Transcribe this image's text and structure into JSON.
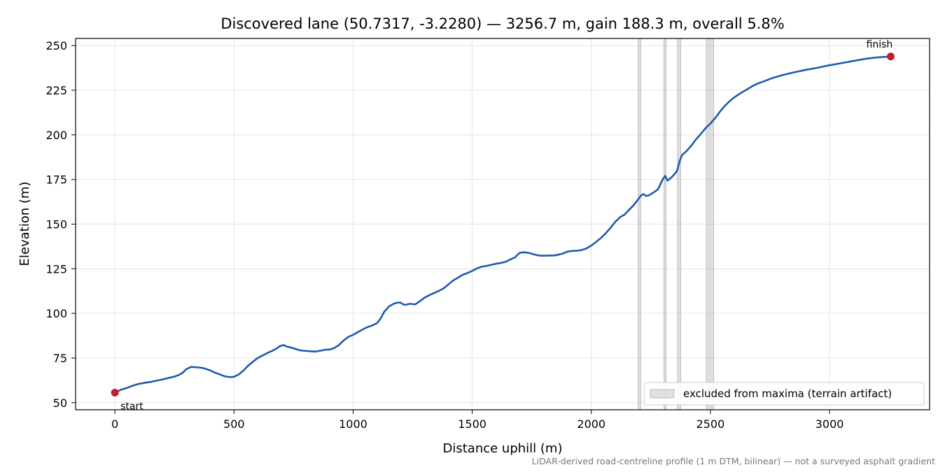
{
  "chart_data": {
    "type": "line",
    "title": "Discovered lane (50.7317, -3.2280) — 3256.7 m, gain 188.3 m, overall 5.8%",
    "xlabel": "Distance uphill (m)",
    "ylabel": "Elevation (m)",
    "xlim": [
      -165,
      3420
    ],
    "ylim": [
      46,
      254
    ],
    "x_ticks": [
      0,
      500,
      1000,
      1500,
      2000,
      2500,
      3000
    ],
    "y_ticks": [
      50,
      75,
      100,
      125,
      150,
      175,
      200,
      225,
      250
    ],
    "grid": true,
    "legend_position": "lower-right",
    "line_color": "#1f5aad",
    "marker_color": "#c41e2a",
    "excluded_color": "#bbbbbb",
    "legend": {
      "excluded_label": "excluded from maxima (terrain artifact)"
    },
    "excluded_ranges": [
      [
        2197,
        2207
      ],
      [
        2305,
        2313
      ],
      [
        2362,
        2375
      ],
      [
        2483,
        2513
      ]
    ],
    "markers": [
      {
        "label": "start",
        "x": 0,
        "y": 55.6
      },
      {
        "label": "finish",
        "x": 3256.7,
        "y": 243.9
      }
    ],
    "series": [
      {
        "x": [
          0,
          25,
          50,
          75,
          100,
          125,
          150,
          175,
          200,
          225,
          250,
          270,
          285,
          300,
          320,
          340,
          360,
          380,
          400,
          420,
          440,
          460,
          480,
          500,
          520,
          540,
          560,
          580,
          600,
          620,
          640,
          660,
          680,
          690,
          700,
          710,
          720,
          740,
          760,
          780,
          800,
          820,
          840,
          860,
          880,
          900,
          920,
          940,
          960,
          980,
          1000,
          1020,
          1040,
          1060,
          1080,
          1100,
          1115,
          1130,
          1150,
          1170,
          1185,
          1200,
          1210,
          1220,
          1240,
          1260,
          1280,
          1300,
          1320,
          1340,
          1360,
          1380,
          1400,
          1420,
          1440,
          1460,
          1480,
          1500,
          1520,
          1540,
          1560,
          1580,
          1600,
          1620,
          1640,
          1660,
          1680,
          1690,
          1700,
          1720,
          1740,
          1760,
          1780,
          1800,
          1820,
          1840,
          1860,
          1880,
          1900,
          1920,
          1940,
          1960,
          1980,
          2000,
          2020,
          2040,
          2060,
          2080,
          2100,
          2120,
          2140,
          2160,
          2180,
          2200,
          2210,
          2220,
          2230,
          2240,
          2260,
          2280,
          2300,
          2310,
          2320,
          2340,
          2360,
          2370,
          2380,
          2400,
          2420,
          2440,
          2460,
          2480,
          2500,
          2520,
          2540,
          2560,
          2580,
          2600,
          2620,
          2640,
          2660,
          2680,
          2700,
          2720,
          2740,
          2760,
          2780,
          2800,
          2850,
          2900,
          2950,
          3000,
          3050,
          3100,
          3150,
          3200,
          3256.7
        ],
        "y": [
          55.6,
          57.2,
          58.2,
          59.5,
          60.5,
          61.1,
          61.6,
          62.3,
          63.0,
          63.8,
          64.6,
          65.6,
          66.8,
          68.8,
          70.0,
          69.8,
          69.6,
          69.0,
          68.0,
          66.8,
          65.8,
          64.8,
          64.3,
          64.5,
          65.8,
          68.0,
          70.8,
          73.0,
          75.0,
          76.4,
          77.8,
          79.0,
          80.4,
          81.5,
          82.0,
          82.2,
          81.5,
          80.8,
          80.0,
          79.2,
          79.0,
          78.8,
          78.6,
          79.0,
          79.6,
          79.7,
          80.5,
          82.2,
          84.8,
          86.8,
          88.0,
          89.5,
          91.0,
          92.3,
          93.2,
          94.5,
          97.0,
          100.8,
          103.8,
          105.4,
          106.0,
          106.0,
          105.0,
          104.8,
          105.4,
          105.0,
          106.8,
          108.8,
          110.2,
          111.4,
          112.6,
          114.0,
          116.2,
          118.4,
          120.0,
          121.6,
          122.6,
          123.8,
          125.2,
          126.2,
          126.6,
          127.2,
          127.8,
          128.2,
          128.9,
          130.2,
          131.4,
          132.8,
          134.0,
          134.2,
          133.8,
          133.0,
          132.4,
          132.3,
          132.4,
          132.4,
          132.8,
          133.5,
          134.6,
          135.0,
          135.1,
          135.5,
          136.4,
          138.0,
          140.0,
          142.2,
          144.8,
          147.8,
          151.2,
          153.8,
          155.4,
          158.2,
          161.0,
          164.5,
          166.2,
          166.8,
          165.8,
          166.0,
          167.6,
          169.5,
          175.2,
          177.0,
          174.4,
          176.6,
          179.8,
          185.0,
          188.5,
          191.0,
          194.0,
          197.6,
          200.6,
          203.8,
          206.4,
          209.4,
          213.0,
          216.2,
          218.8,
          221.0,
          222.8,
          224.4,
          226.0,
          227.6,
          228.8,
          229.8,
          230.8,
          231.8,
          232.6,
          233.4,
          235.0,
          236.4,
          237.6,
          239.0,
          240.2,
          241.4,
          242.6,
          243.4,
          243.9
        ]
      }
    ]
  },
  "footnote": "LiDAR-derived road-centreline profile (1 m DTM, bilinear) — not a surveyed asphalt gradient"
}
